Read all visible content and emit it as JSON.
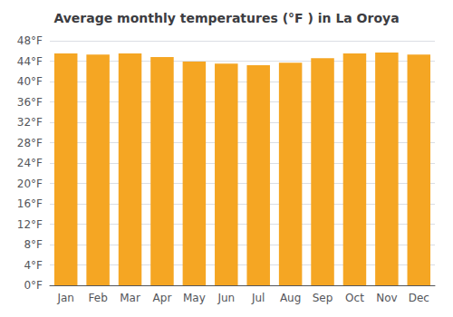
{
  "chart_data": {
    "type": "bar",
    "title": "Average monthly temperatures (°F ) in La Oroya",
    "categories": [
      "Jan",
      "Feb",
      "Mar",
      "Apr",
      "May",
      "Jun",
      "Jul",
      "Aug",
      "Sep",
      "Oct",
      "Nov",
      "Dec"
    ],
    "values": [
      45.5,
      45.3,
      45.5,
      44.8,
      43.9,
      43.5,
      43.2,
      43.7,
      44.6,
      45.5,
      45.7,
      45.3
    ],
    "color": "#F5A623",
    "ylim": [
      0,
      48
    ],
    "yticks": [
      {
        "value": 0,
        "label": "0°F"
      },
      {
        "value": 4,
        "label": "4°F"
      },
      {
        "value": 8,
        "label": "8°F"
      },
      {
        "value": 12,
        "label": "12°F"
      },
      {
        "value": 16,
        "label": "16°F"
      },
      {
        "value": 20,
        "label": "20°F"
      },
      {
        "value": 24,
        "label": "24°F"
      },
      {
        "value": 28,
        "label": "28°F"
      },
      {
        "value": 32,
        "label": "32°F"
      },
      {
        "value": 36,
        "label": "36°F"
      },
      {
        "value": 40,
        "label": "40°F"
      },
      {
        "value": 44,
        "label": "44°F"
      },
      {
        "value": 48,
        "label": "48°F"
      }
    ],
    "grid": true
  }
}
